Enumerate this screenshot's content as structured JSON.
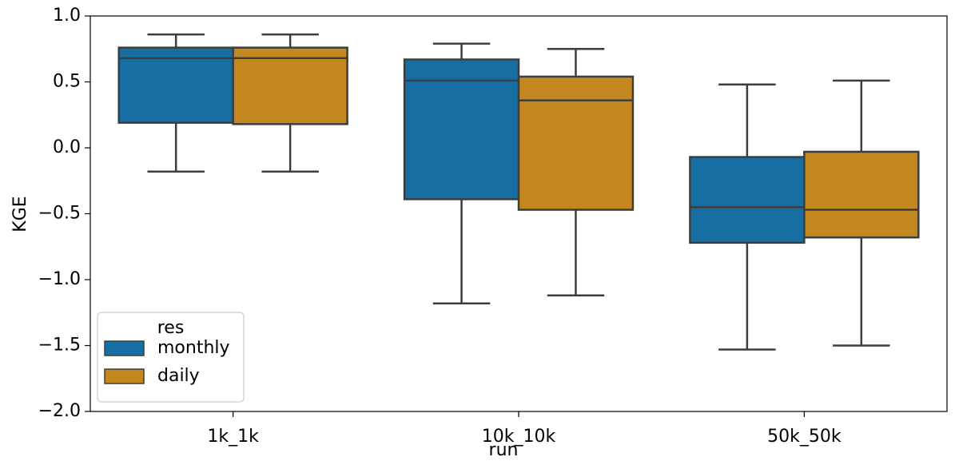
{
  "chart_data": {
    "type": "box",
    "xlabel": "run",
    "ylabel": "KGE",
    "categories": [
      "1k_1k",
      "10k_10k",
      "50k_50k"
    ],
    "series": [
      {
        "name": "monthly",
        "color": "#176ea3",
        "whislo": [
          -0.18,
          -1.18,
          -1.53
        ],
        "q1": [
          0.19,
          -0.39,
          -0.72
        ],
        "med": [
          0.68,
          0.51,
          -0.45
        ],
        "q3": [
          0.76,
          0.67,
          -0.07
        ],
        "whishi": [
          0.86,
          0.79,
          0.48
        ]
      },
      {
        "name": "daily",
        "color": "#c4861f",
        "whislo": [
          -0.18,
          -1.12,
          -1.5
        ],
        "q1": [
          0.18,
          -0.47,
          -0.68
        ],
        "med": [
          0.68,
          0.36,
          -0.47
        ],
        "q3": [
          0.76,
          0.54,
          -0.03
        ],
        "whishi": [
          0.86,
          0.75,
          0.51
        ]
      }
    ],
    "ylim": [
      -2.0,
      1.0
    ],
    "yticks": [
      {
        "value": 1.0,
        "label": "1.0"
      },
      {
        "value": 0.5,
        "label": "0.5"
      },
      {
        "value": 0.0,
        "label": "0.0"
      },
      {
        "value": -0.5,
        "label": "−0.5"
      },
      {
        "value": -1.0,
        "label": "−1.0"
      },
      {
        "value": -1.5,
        "label": "−1.5"
      },
      {
        "value": -2.0,
        "label": "−2.0"
      }
    ],
    "legend_title": "res",
    "legend_loc": "lower left"
  }
}
